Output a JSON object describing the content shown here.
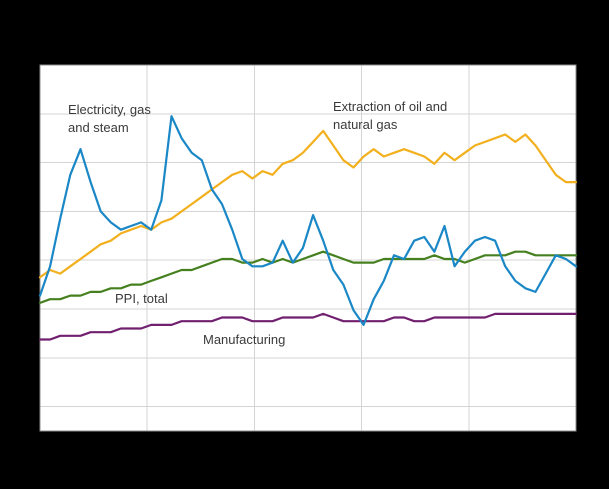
{
  "figure": {
    "background_color": "#000000",
    "note": "Line chart on black background; axis tick labels are not visible in the image."
  },
  "chart_data": {
    "type": "line",
    "title": "",
    "xlabel": "",
    "ylabel": "",
    "x_count": 54,
    "x_tick_labels_visible": false,
    "y_tick_labels_visible": false,
    "ylim": [
      0,
      100
    ],
    "plot_bg": "#ffffff",
    "border_color": "#8c8c8c",
    "grid": {
      "v_divisions": 5,
      "h_divisions": 7.5,
      "color": "#d4d4d4"
    },
    "series": [
      {
        "id": "manufacturing",
        "name": "Manufacturing",
        "color": "#711f6f",
        "values": [
          25,
          25,
          26,
          26,
          26,
          27,
          27,
          27,
          28,
          28,
          28,
          29,
          29,
          29,
          30,
          30,
          30,
          30,
          31,
          31,
          31,
          30,
          30,
          30,
          31,
          31,
          31,
          31,
          32,
          31,
          30,
          30,
          30,
          30,
          30,
          31,
          31,
          30,
          30,
          31,
          31,
          31,
          31,
          31,
          31,
          32,
          32,
          32,
          32,
          32,
          32,
          32,
          32,
          32
        ]
      },
      {
        "id": "ppi-total",
        "name": "PPI, total",
        "color": "#45801f",
        "values": [
          35,
          36,
          36,
          37,
          37,
          38,
          38,
          39,
          39,
          40,
          40,
          41,
          42,
          43,
          44,
          44,
          45,
          46,
          47,
          47,
          46,
          46,
          47,
          46,
          47,
          46,
          47,
          48,
          49,
          48,
          47,
          46,
          46,
          46,
          47,
          47,
          47,
          47,
          47,
          48,
          47,
          47,
          46,
          47,
          48,
          48,
          48,
          49,
          49,
          48,
          48,
          48,
          48,
          48
        ]
      },
      {
        "id": "extraction-oil-gas",
        "name": "Extraction of oil and natural gas",
        "color": "#f2b01e",
        "values": [
          42,
          44,
          43,
          45,
          47,
          49,
          51,
          52,
          54,
          55,
          56,
          55,
          57,
          58,
          60,
          62,
          64,
          66,
          68,
          70,
          71,
          69,
          71,
          70,
          73,
          74,
          76,
          79,
          82,
          78,
          74,
          72,
          75,
          77,
          75,
          76,
          77,
          76,
          75,
          73,
          76,
          74,
          76,
          78,
          79,
          80,
          81,
          79,
          81,
          78,
          74,
          70,
          68,
          68
        ]
      },
      {
        "id": "electricity-gas-steam",
        "name": "Electricity, gas and steam",
        "color": "#1a87c6",
        "values": [
          37,
          45,
          58,
          70,
          77,
          68,
          60,
          57,
          55,
          56,
          57,
          55,
          63,
          86,
          80,
          76,
          74,
          66,
          62,
          55,
          47,
          45,
          45,
          46,
          52,
          46,
          50,
          59,
          52,
          44,
          40,
          33,
          29,
          36,
          41,
          48,
          47,
          52,
          53,
          49,
          56,
          45,
          49,
          52,
          53,
          52,
          45,
          41,
          39,
          38,
          43,
          48,
          47,
          45
        ]
      }
    ],
    "annotations": [
      {
        "id": "electricity-label",
        "text": "Electricity, gas\nand steam",
        "x": 68,
        "y": 101
      },
      {
        "id": "extraction-label",
        "text": "Extraction of oil and\nnatural gas",
        "x": 333,
        "y": 98
      },
      {
        "id": "ppi-label",
        "text": "PPI, total",
        "x": 115,
        "y": 290
      },
      {
        "id": "manufacturing-label",
        "text": "Manufacturing",
        "x": 203,
        "y": 331
      }
    ]
  }
}
